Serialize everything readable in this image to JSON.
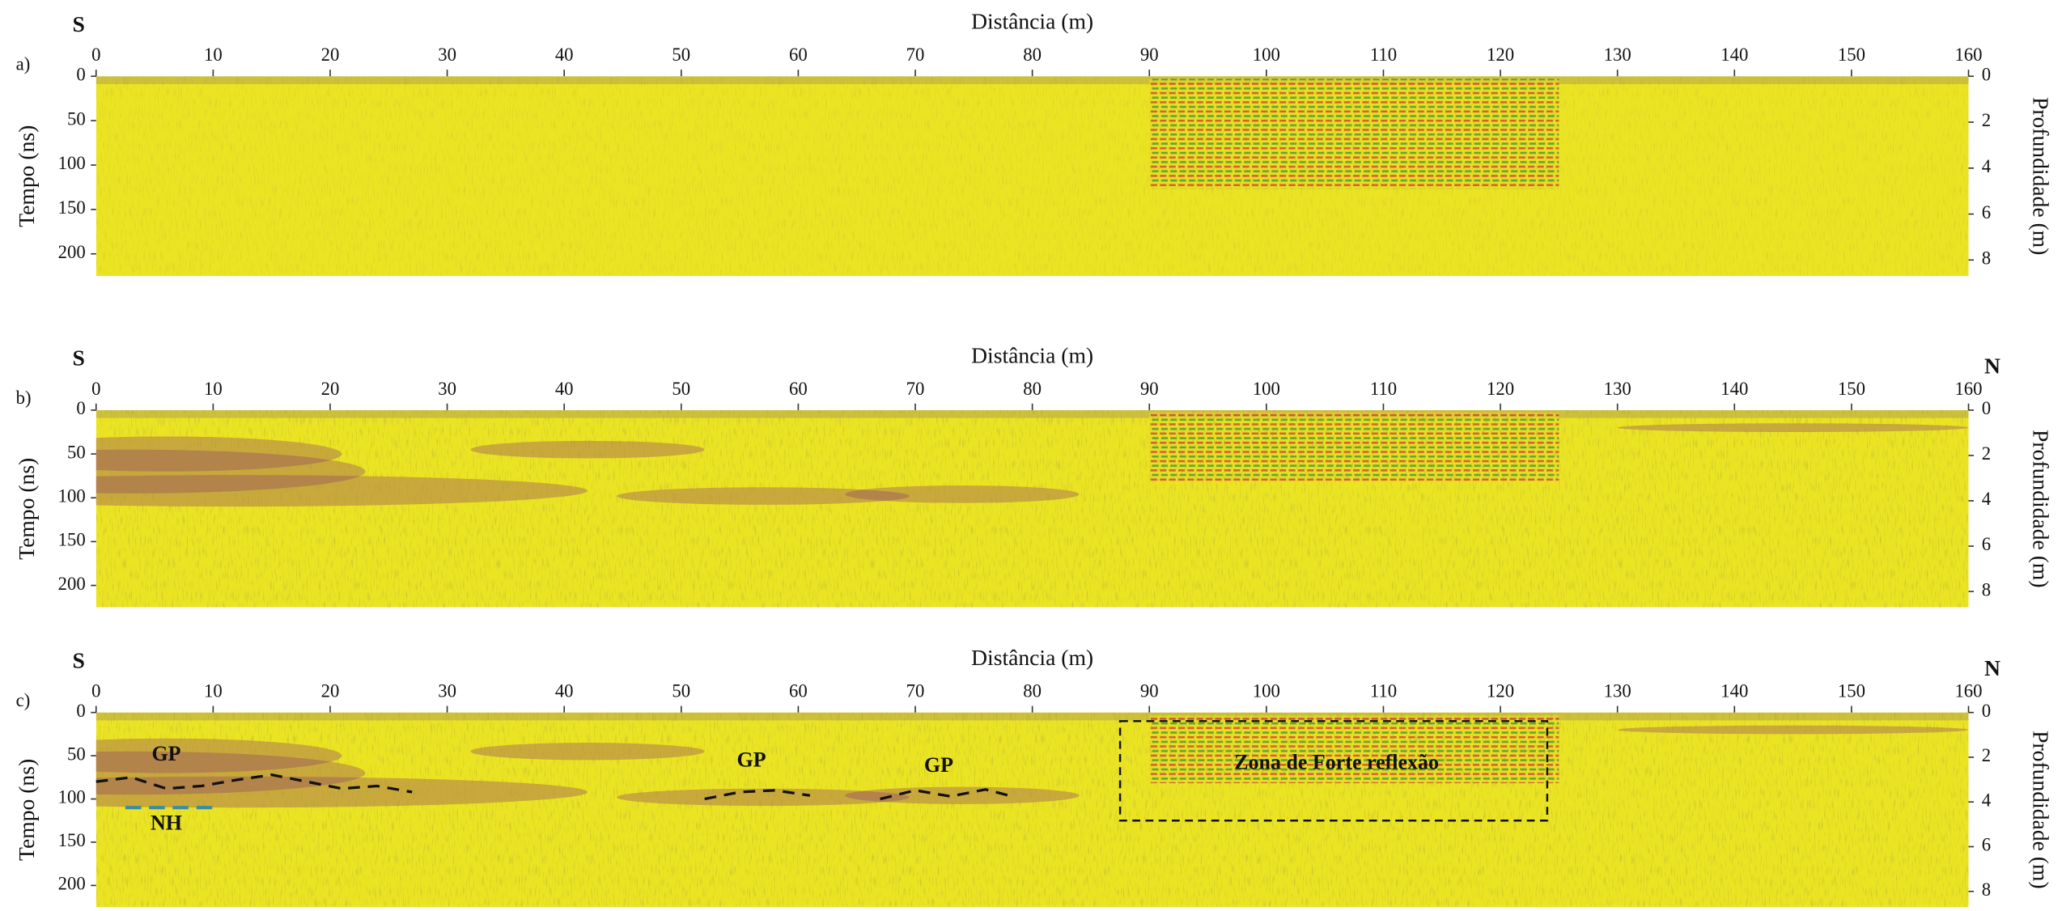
{
  "chart_data": [
    {
      "type": "radargram",
      "panel_label": "a)",
      "title": "Distância (m)",
      "left_label": "S",
      "xlim": [
        0,
        160
      ],
      "xticks": [
        0,
        10,
        20,
        30,
        40,
        50,
        60,
        70,
        80,
        90,
        100,
        110,
        120,
        130,
        140,
        150,
        160
      ],
      "ylim": [
        0,
        225
      ],
      "yticks": [
        0,
        50,
        100,
        150,
        200
      ],
      "y_inverted": true,
      "ylabel": "Tempo (ns)",
      "y2lim": [
        0,
        8.7
      ],
      "y2ticks": [
        0,
        2,
        4,
        6,
        8
      ],
      "y2label": "Profundidade (m)"
    },
    {
      "type": "radargram",
      "panel_label": "b)",
      "title": "Distância (m)",
      "left_label": "S",
      "right_label": "N",
      "xlim": [
        0,
        160
      ],
      "xticks": [
        0,
        10,
        20,
        30,
        40,
        50,
        60,
        70,
        80,
        90,
        100,
        110,
        120,
        130,
        140,
        150,
        160
      ],
      "ylim": [
        0,
        225
      ],
      "yticks": [
        0,
        50,
        100,
        150,
        200
      ],
      "y_inverted": true,
      "ylabel": "Tempo (ns)",
      "y2lim": [
        0,
        8.7
      ],
      "y2ticks": [
        0,
        2,
        4,
        6,
        8
      ],
      "y2label": "Profundidade (m)"
    },
    {
      "type": "radargram",
      "panel_label": "c)",
      "title": "Distância (m)",
      "left_label": "S",
      "right_label": "N",
      "xlim": [
        0,
        160
      ],
      "xticks": [
        0,
        10,
        20,
        30,
        40,
        50,
        60,
        70,
        80,
        90,
        100,
        110,
        120,
        130,
        140,
        150,
        160
      ],
      "ylim": [
        0,
        225
      ],
      "yticks": [
        0,
        50,
        100,
        150,
        200
      ],
      "y_inverted": true,
      "ylabel": "Tempo (ns)",
      "y2lim": [
        0,
        8.7
      ],
      "y2ticks": [
        0,
        2,
        4,
        6,
        8
      ],
      "y2label": "Profundidade (m)",
      "annotations": [
        {
          "text": "GP"
        },
        {
          "text": "NH"
        },
        {
          "text": "GP"
        },
        {
          "text": "GP"
        },
        {
          "text": "Zona de Forte reflexão"
        }
      ]
    }
  ]
}
